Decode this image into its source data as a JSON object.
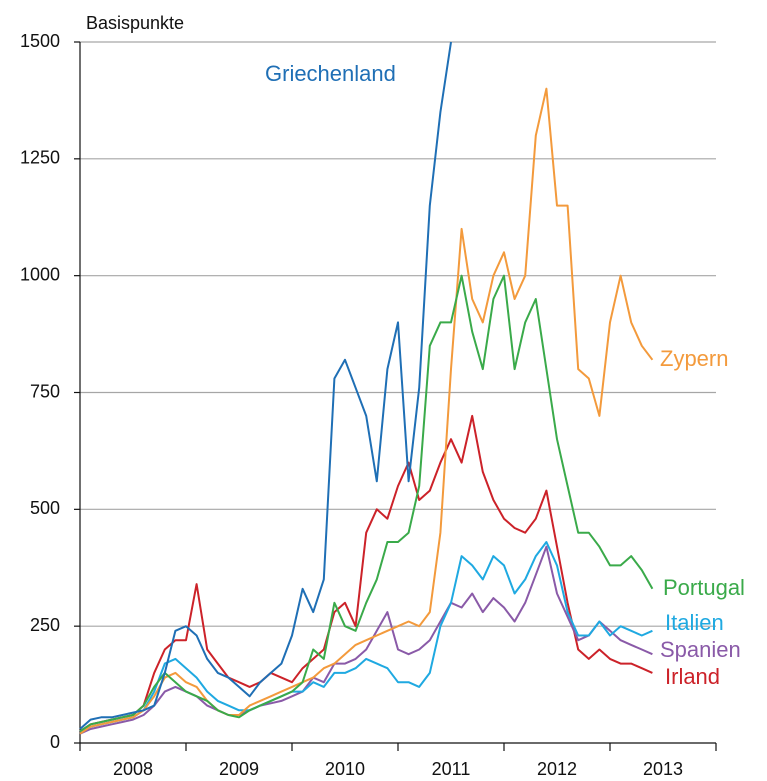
{
  "chart_data": {
    "type": "line",
    "ylabel": "Basispunkte",
    "xlim": [
      2008,
      2014
    ],
    "xticks": [
      {
        "value": 2008.5,
        "label": "2008"
      },
      {
        "value": 2009.5,
        "label": "2009"
      },
      {
        "value": 2010.5,
        "label": "2010"
      },
      {
        "value": 2011.5,
        "label": "2011"
      },
      {
        "value": 2012.5,
        "label": "2012"
      },
      {
        "value": 2013.5,
        "label": "2013"
      }
    ],
    "xtick_marks": [
      2008,
      2009,
      2010,
      2011,
      2012,
      2013,
      2014
    ],
    "ylim": [
      0,
      1500
    ],
    "yticks": [
      0,
      250,
      500,
      750,
      1000,
      1250,
      1500
    ],
    "grid": true,
    "x": [
      2008.0,
      2008.1,
      2008.2,
      2008.3,
      2008.4,
      2008.5,
      2008.6,
      2008.7,
      2008.8,
      2008.9,
      2009.0,
      2009.1,
      2009.2,
      2009.3,
      2009.4,
      2009.5,
      2009.6,
      2009.7,
      2009.8,
      2009.9,
      2010.0,
      2010.1,
      2010.2,
      2010.3,
      2010.4,
      2010.5,
      2010.6,
      2010.7,
      2010.8,
      2010.9,
      2011.0,
      2011.1,
      2011.2,
      2011.3,
      2011.4,
      2011.5,
      2011.6,
      2011.7,
      2011.8,
      2011.9,
      2012.0,
      2012.1,
      2012.2,
      2012.3,
      2012.4,
      2012.5,
      2012.6,
      2012.7,
      2012.8,
      2012.9,
      2013.0,
      2013.1,
      2013.2,
      2013.3,
      2013.4
    ],
    "series": [
      {
        "name": "Griechenland",
        "color": "#1f6fb5",
        "values": [
          30,
          50,
          55,
          55,
          60,
          65,
          70,
          80,
          150,
          240,
          250,
          230,
          180,
          150,
          140,
          120,
          100,
          130,
          150,
          170,
          230,
          330,
          280,
          350,
          780,
          820,
          760,
          700,
          560,
          800,
          900,
          560,
          760,
          1150,
          1350,
          1500,
          null,
          null,
          null,
          null,
          null,
          null,
          null,
          null,
          null,
          null,
          null,
          null,
          null,
          null,
          null,
          null,
          null,
          null,
          null
        ]
      },
      {
        "name": "Zypern",
        "color": "#f39a3c",
        "values": [
          20,
          35,
          40,
          45,
          50,
          55,
          70,
          100,
          140,
          150,
          130,
          120,
          90,
          70,
          60,
          60,
          80,
          90,
          100,
          110,
          120,
          130,
          140,
          160,
          170,
          190,
          210,
          220,
          230,
          240,
          250,
          260,
          250,
          280,
          450,
          800,
          1100,
          950,
          900,
          1000,
          1050,
          950,
          1000,
          1300,
          1400,
          1150,
          1150,
          800,
          780,
          700,
          900,
          1000,
          900,
          850,
          820
        ]
      },
      {
        "name": "Portugal",
        "color": "#3aaa4a",
        "values": [
          25,
          40,
          45,
          50,
          55,
          60,
          80,
          120,
          150,
          130,
          110,
          100,
          90,
          70,
          60,
          55,
          70,
          80,
          90,
          100,
          110,
          130,
          200,
          180,
          300,
          250,
          240,
          300,
          350,
          430,
          430,
          450,
          550,
          850,
          900,
          900,
          1000,
          880,
          800,
          950,
          1000,
          800,
          900,
          950,
          800,
          650,
          550,
          450,
          450,
          420,
          380,
          380,
          400,
          370,
          330
        ]
      },
      {
        "name": "Italien",
        "color": "#1fa9e1",
        "values": [
          25,
          35,
          40,
          45,
          50,
          55,
          70,
          110,
          170,
          180,
          160,
          140,
          110,
          90,
          80,
          70,
          70,
          80,
          90,
          100,
          110,
          110,
          130,
          120,
          150,
          150,
          160,
          180,
          170,
          160,
          130,
          130,
          120,
          150,
          250,
          300,
          400,
          380,
          350,
          400,
          380,
          320,
          350,
          400,
          430,
          380,
          280,
          230,
          230,
          260,
          230,
          250,
          240,
          230,
          240
        ]
      },
      {
        "name": "Spanien",
        "color": "#8a5aa8",
        "values": [
          20,
          30,
          35,
          40,
          45,
          50,
          60,
          80,
          110,
          120,
          110,
          100,
          80,
          70,
          60,
          60,
          70,
          80,
          85,
          90,
          100,
          110,
          140,
          130,
          170,
          170,
          180,
          200,
          240,
          280,
          200,
          190,
          200,
          220,
          260,
          300,
          290,
          320,
          280,
          310,
          290,
          260,
          300,
          360,
          420,
          320,
          270,
          220,
          230,
          260,
          240,
          220,
          210,
          200,
          190
        ]
      },
      {
        "name": "Irland",
        "color": "#cc2229",
        "values": [
          25,
          40,
          45,
          50,
          55,
          60,
          80,
          150,
          200,
          220,
          220,
          340,
          200,
          170,
          140,
          130,
          120,
          130,
          150,
          140,
          130,
          160,
          180,
          200,
          280,
          300,
          250,
          450,
          500,
          480,
          550,
          600,
          520,
          540,
          600,
          650,
          600,
          700,
          580,
          520,
          480,
          460,
          450,
          480,
          540,
          420,
          300,
          200,
          180,
          200,
          180,
          170,
          170,
          160,
          150
        ]
      }
    ]
  }
}
